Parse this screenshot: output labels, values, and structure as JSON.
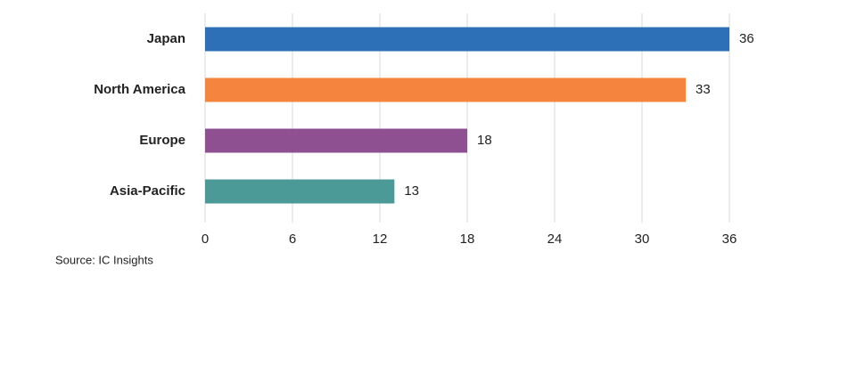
{
  "chart_data": {
    "type": "bar",
    "orientation": "horizontal",
    "categories": [
      "Japan",
      "North America",
      "Europe",
      "Asia-Pacific"
    ],
    "values": [
      36,
      33,
      18,
      13
    ],
    "colors": [
      "#2e70b8",
      "#f5843e",
      "#8e5090",
      "#4b9a98"
    ],
    "xlim": [
      0,
      36
    ],
    "xticks": [
      0,
      6,
      12,
      18,
      24,
      30,
      36
    ],
    "grid": true,
    "source": "Source: IC Insights"
  }
}
